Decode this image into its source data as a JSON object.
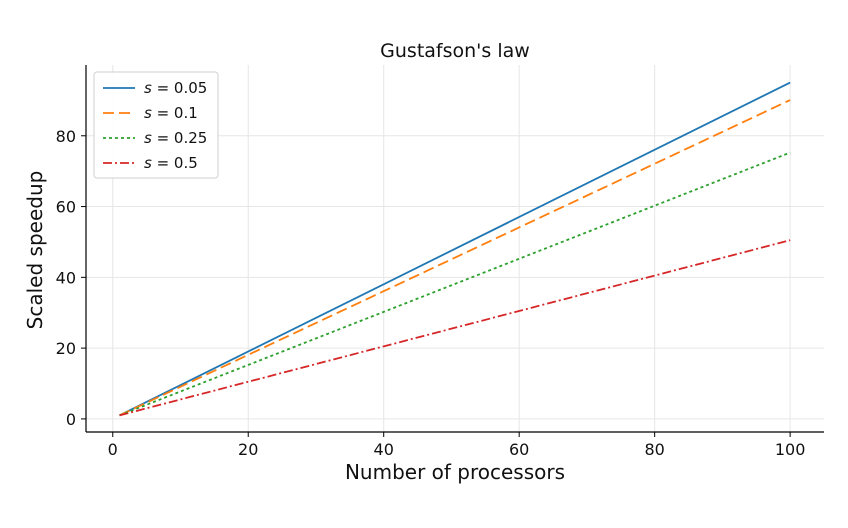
{
  "chart_data": {
    "type": "line",
    "title": "Gustafson's law",
    "xlabel": "Number of processors",
    "ylabel": "Scaled speedup",
    "xlim": [
      -3.95,
      105
    ],
    "ylim": [
      -3.7,
      100
    ],
    "grid": true,
    "legend_position": "top-left",
    "x_ticks": [
      0,
      20,
      40,
      60,
      80,
      100
    ],
    "y_ticks": [
      0,
      20,
      40,
      60,
      80
    ],
    "x_tick_labels": [
      "0",
      "20",
      "40",
      "60",
      "80",
      "100"
    ],
    "y_tick_labels": [
      "0",
      "20",
      "40",
      "60",
      "80"
    ],
    "x": [
      1,
      100
    ],
    "series": [
      {
        "name": "s = 0.05",
        "legend_prefix": "s",
        "legend_suffix": " = 0.05",
        "values": [
          1,
          95.05
        ],
        "color": "#1f77b4",
        "dash": ""
      },
      {
        "name": "s = 0.1",
        "legend_prefix": "s",
        "legend_suffix": " = 0.1",
        "values": [
          1,
          90.1
        ],
        "color": "#ff7f0e",
        "dash": "11 5"
      },
      {
        "name": "s = 0.25",
        "legend_prefix": "s",
        "legend_suffix": " = 0.25",
        "values": [
          1,
          75.25
        ],
        "color": "#2ca02c",
        "dash": "3 3"
      },
      {
        "name": "s = 0.5",
        "legend_prefix": "s",
        "legend_suffix": " = 0.5",
        "values": [
          1,
          50.5
        ],
        "color": "#d62728",
        "dash": "9 3 2 3"
      }
    ]
  }
}
